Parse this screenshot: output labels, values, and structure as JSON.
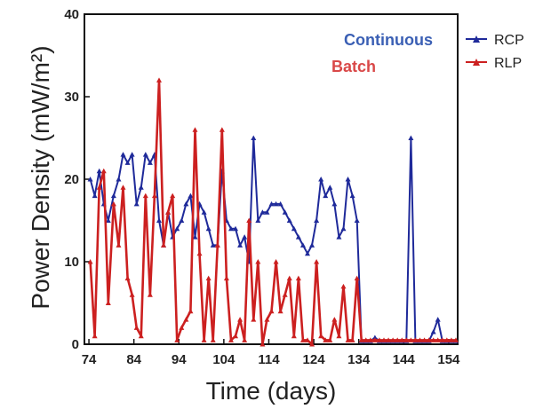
{
  "chart_data": {
    "type": "line",
    "xlabel": "Time (days)",
    "ylabel": "Power Density (mW/m²)",
    "xlim": [
      73,
      156
    ],
    "ylim": [
      0,
      40
    ],
    "xticks": [
      74,
      84,
      94,
      104,
      114,
      124,
      134,
      144,
      154
    ],
    "yticks": [
      0,
      10,
      20,
      30,
      40
    ],
    "legend_position": "right",
    "annotations": [
      {
        "text": "Continuous",
        "color": "#3a5fb4"
      },
      {
        "text": "Batch",
        "color": "#d94848"
      }
    ],
    "series": [
      {
        "name": "RCP",
        "color": "#1f2a9a",
        "marker": "triangle",
        "x": [
          74.3,
          75.3,
          76.3,
          77.3,
          78.3,
          79.5,
          80.6,
          81.6,
          82.6,
          83.6,
          84.6,
          85.6,
          86.6,
          87.6,
          88.6,
          89.6,
          90.6,
          91.6,
          92.6,
          93.6,
          94.6,
          95.6,
          96.6,
          97.6,
          98.6,
          99.6,
          100.6,
          101.6,
          102.6,
          103.6,
          104.6,
          105.6,
          106.6,
          107.6,
          108.6,
          109.6,
          110.6,
          111.6,
          112.6,
          113.6,
          114.6,
          115.6,
          116.6,
          117.6,
          118.6,
          119.6,
          120.6,
          121.6,
          122.6,
          123.6,
          124.6,
          125.6,
          126.6,
          127.6,
          128.6,
          129.6,
          130.6,
          131.6,
          132.6,
          133.6,
          134.6,
          135.6,
          136.6,
          137.6,
          138.6,
          139.6,
          140.6,
          141.6,
          142.6,
          143.6,
          144.6,
          145.6,
          146.6,
          147.6,
          148.6,
          149.6,
          150.6,
          151.6,
          152.6,
          153.6,
          154.6,
          155.6
        ],
        "values": [
          20,
          18,
          21,
          17,
          15,
          18,
          20,
          23,
          22,
          23,
          17,
          19,
          23,
          22,
          23,
          15,
          12,
          16,
          13,
          14,
          15,
          17,
          18,
          13,
          17,
          16,
          14,
          12,
          12,
          21,
          15,
          14,
          14,
          12,
          13,
          10,
          25,
          15,
          16,
          16,
          17,
          17,
          17,
          16,
          15,
          14,
          13,
          12,
          11,
          12,
          15,
          20,
          18,
          19,
          17,
          13,
          14,
          20,
          18,
          15,
          0.4,
          0.4,
          0.4,
          0.8,
          0.4,
          0.4,
          0.4,
          0.4,
          0.4,
          0.4,
          0.4,
          25,
          0.4,
          0.4,
          0.4,
          0.4,
          1.5,
          3,
          0.4,
          0.4,
          0.4,
          0.4
        ]
      },
      {
        "name": "RLP",
        "color": "#cc2020",
        "marker": "triangle",
        "x": [
          74.3,
          75.3,
          76.3,
          77.3,
          78.3,
          79.5,
          80.6,
          81.6,
          82.6,
          83.6,
          84.6,
          85.6,
          86.6,
          87.6,
          88.6,
          89.6,
          90.6,
          91.6,
          92.6,
          93.6,
          94.6,
          95.6,
          96.6,
          97.6,
          98.6,
          99.6,
          100.6,
          101.6,
          102.6,
          103.6,
          104.6,
          105.6,
          106.6,
          107.6,
          108.6,
          109.6,
          110.6,
          111.6,
          112.6,
          113.6,
          114.6,
          115.6,
          116.6,
          117.6,
          118.6,
          119.6,
          120.6,
          121.6,
          122.6,
          123.6,
          124.6,
          125.6,
          126.6,
          127.6,
          128.6,
          129.6,
          130.6,
          131.6,
          132.6,
          133.6,
          134.6,
          135.6,
          136.6,
          137.6,
          138.6,
          139.6,
          140.6,
          141.6,
          142.6,
          143.6,
          144.6,
          145.6,
          146.6,
          147.6,
          148.6,
          149.6,
          150.6,
          151.6,
          152.6,
          153.6,
          154.6,
          155.6
        ],
        "values": [
          10,
          1,
          19,
          21,
          5,
          17,
          12,
          19,
          8,
          6,
          2,
          1,
          18,
          6,
          18,
          32,
          12,
          16,
          18,
          0.5,
          2,
          3,
          4,
          26,
          11,
          0.5,
          8,
          0.5,
          12,
          26,
          8,
          0.5,
          1,
          3,
          0.5,
          15,
          3,
          10,
          0,
          3,
          4,
          10,
          4,
          6,
          8,
          1,
          8,
          0.5,
          0.5,
          0,
          10,
          1,
          0.5,
          0.5,
          3,
          1,
          7,
          0.5,
          0.5,
          8,
          0.5,
          0.5,
          0.5,
          0.5,
          0.5,
          0.5,
          0.5,
          0.5,
          0.5,
          0.5,
          0.5,
          0.5,
          0.5,
          0.5,
          0.5,
          0.5,
          0.5,
          0.5,
          0.5,
          0.5,
          0.5,
          0.5
        ]
      }
    ]
  }
}
